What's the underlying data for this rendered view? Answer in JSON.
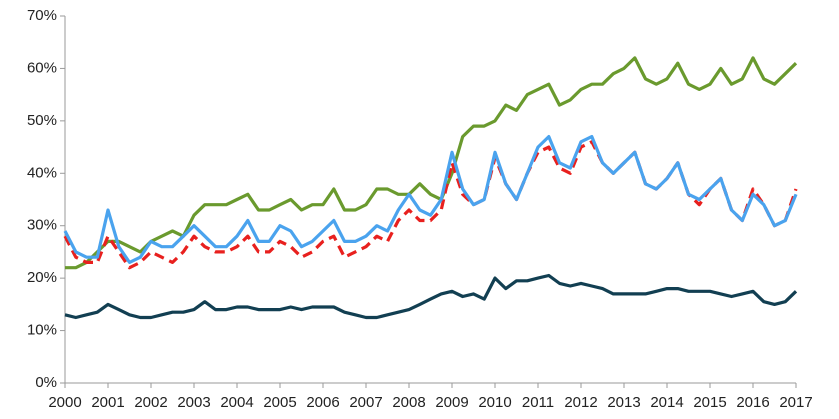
{
  "chart_data": {
    "type": "line",
    "x": [
      2000,
      2000.25,
      2000.5,
      2000.75,
      2001,
      2001.25,
      2001.5,
      2001.75,
      2002,
      2002.25,
      2002.5,
      2002.75,
      2003,
      2003.25,
      2003.5,
      2003.75,
      2004,
      2004.25,
      2004.5,
      2004.75,
      2005,
      2005.25,
      2005.5,
      2005.75,
      2006,
      2006.25,
      2006.5,
      2006.75,
      2007,
      2007.25,
      2007.5,
      2007.75,
      2008,
      2008.25,
      2008.5,
      2008.75,
      2009,
      2009.25,
      2009.5,
      2009.75,
      2010,
      2010.25,
      2010.5,
      2010.75,
      2011,
      2011.25,
      2011.5,
      2011.75,
      2012,
      2012.25,
      2012.5,
      2012.75,
      2013,
      2013.25,
      2013.5,
      2013.75,
      2014,
      2014.25,
      2014.5,
      2014.75,
      2015,
      2015.25,
      2015.5,
      2015.75,
      2016,
      2016.25,
      2016.5,
      2016.75,
      2017
    ],
    "series": [
      {
        "color": "#6a9a2e",
        "dashed": false,
        "values": [
          22,
          22,
          23,
          25,
          27,
          27,
          26,
          25,
          27,
          28,
          29,
          28,
          32,
          34,
          34,
          34,
          35,
          36,
          33,
          33,
          34,
          35,
          33,
          34,
          34,
          37,
          33,
          33,
          34,
          37,
          37,
          36,
          36,
          38,
          36,
          35,
          40,
          47,
          49,
          49,
          50,
          53,
          52,
          55,
          56,
          57,
          53,
          54,
          56,
          57,
          57,
          59,
          60,
          62,
          58,
          57,
          58,
          61,
          57,
          56,
          57,
          60,
          57,
          58,
          62,
          58,
          57,
          59,
          61
        ]
      },
      {
        "color": "#e8201e",
        "dashed": true,
        "values": [
          28,
          24,
          23,
          23,
          28,
          25,
          22,
          23,
          25,
          24,
          23,
          25,
          28,
          26,
          25,
          25,
          26,
          28,
          25,
          25,
          27,
          26,
          24,
          25,
          27,
          28,
          24,
          25,
          26,
          28,
          27,
          31,
          33,
          31,
          31,
          33,
          42,
          36,
          34,
          35,
          43,
          38,
          35,
          40,
          44,
          45,
          41,
          40,
          45,
          46,
          42,
          40,
          42,
          44,
          38,
          37,
          39,
          42,
          36,
          34,
          37,
          39,
          33,
          31,
          37,
          34,
          30,
          31,
          37
        ]
      },
      {
        "color": "#4aa3ee",
        "dashed": false,
        "values": [
          29,
          25,
          24,
          24,
          33,
          26,
          23,
          24,
          27,
          26,
          26,
          28,
          30,
          28,
          26,
          26,
          28,
          31,
          27,
          27,
          30,
          29,
          26,
          27,
          29,
          31,
          27,
          27,
          28,
          30,
          29,
          33,
          36,
          33,
          32,
          35,
          44,
          37,
          34,
          35,
          44,
          38,
          35,
          40,
          45,
          47,
          42,
          41,
          46,
          47,
          42,
          40,
          42,
          44,
          38,
          37,
          39,
          42,
          36,
          35,
          37,
          39,
          33,
          31,
          36,
          34,
          30,
          31,
          36
        ]
      },
      {
        "color": "#123f52",
        "dashed": false,
        "values": [
          13,
          12.5,
          13,
          13.5,
          15,
          14,
          13,
          12.5,
          12.5,
          13,
          13.5,
          13.5,
          14,
          15.5,
          14,
          14,
          14.5,
          14.5,
          14,
          14,
          14,
          14.5,
          14,
          14.5,
          14.5,
          14.5,
          13.5,
          13,
          12.5,
          12.5,
          13,
          13.5,
          14,
          15,
          16,
          17,
          17.5,
          16.5,
          17,
          16,
          20,
          18,
          19.5,
          19.5,
          20,
          20.5,
          19,
          18.5,
          19,
          18.5,
          18,
          17,
          17,
          17,
          17,
          17.5,
          18,
          18,
          17.5,
          17.5,
          17.5,
          17,
          16.5,
          17,
          17.5,
          15.5,
          15,
          15.5,
          17.5
        ]
      }
    ],
    "xlim": [
      2000,
      2017
    ],
    "xticks": [
      2000,
      2001,
      2002,
      2003,
      2004,
      2005,
      2006,
      2007,
      2008,
      2009,
      2010,
      2011,
      2012,
      2013,
      2014,
      2015,
      2016,
      2017
    ],
    "ylim": [
      0,
      70
    ],
    "yticks": [
      {
        "value": 0,
        "label": "0%"
      },
      {
        "value": 10,
        "label": "10%"
      },
      {
        "value": 20,
        "label": "20%"
      },
      {
        "value": 30,
        "label": "30%"
      },
      {
        "value": 40,
        "label": "40%"
      },
      {
        "value": 50,
        "label": "50%"
      },
      {
        "value": 60,
        "label": "60%"
      },
      {
        "value": 70,
        "label": "70%"
      }
    ],
    "grid": false
  }
}
